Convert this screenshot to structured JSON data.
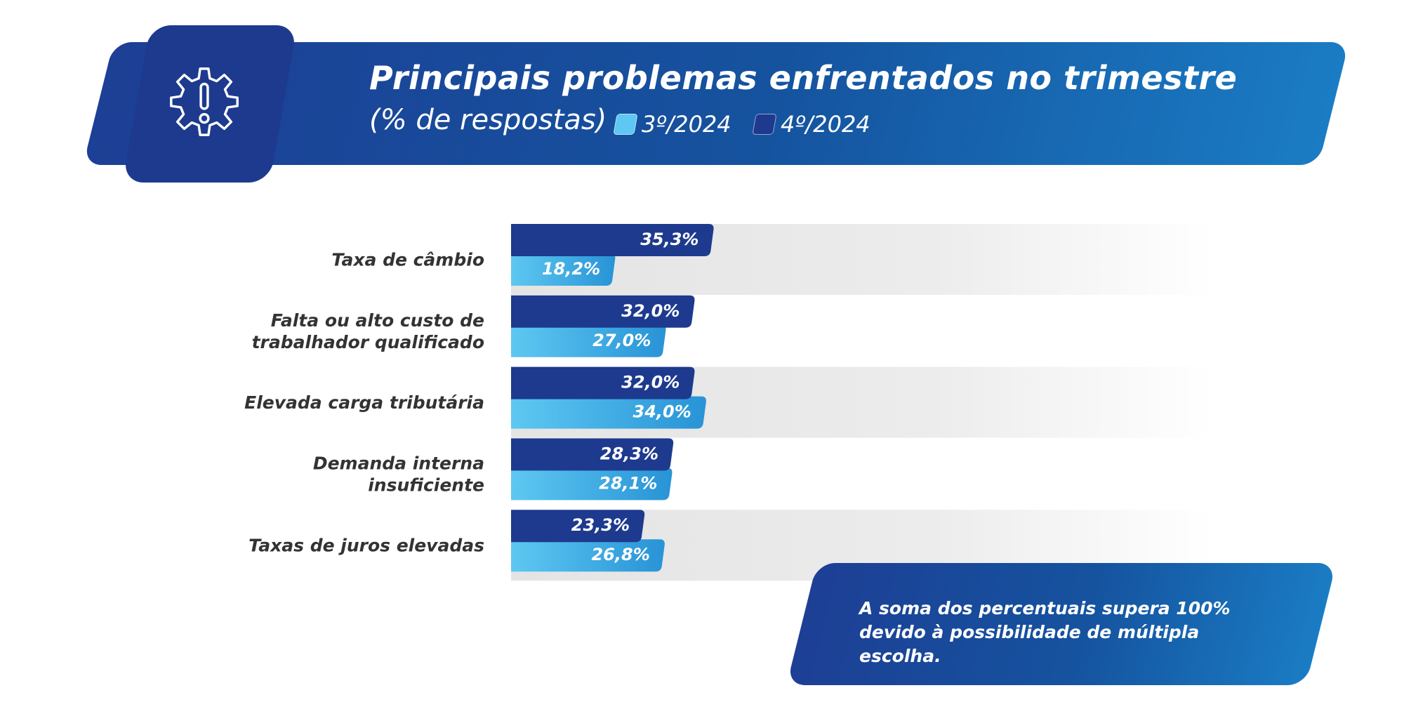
{
  "header": {
    "title": "Principais problemas enfrentados no trimestre",
    "subtitle": "(% de respostas)",
    "icon": "gear-alert-icon"
  },
  "legend": [
    {
      "label": "3º/2024",
      "color": "#5ec8f2"
    },
    {
      "label": "4º/2024",
      "color": "#1d3a8e"
    }
  ],
  "chart_data": {
    "type": "bar",
    "orientation": "horizontal",
    "title": "Principais problemas enfrentados no trimestre",
    "subtitle": "(% de respostas)",
    "categories": [
      [
        "Taxa de câmbio"
      ],
      [
        "Falta ou alto custo de",
        "trabalhador qualificado"
      ],
      [
        "Elevada carga tributária"
      ],
      [
        "Demanda interna",
        "insuficiente"
      ],
      [
        "Taxas de juros elevadas"
      ]
    ],
    "series": [
      {
        "name": "4º/2024",
        "color": "#1d3a8e",
        "values": [
          35.3,
          32.0,
          32.0,
          28.3,
          23.3
        ],
        "labels": [
          "35,3%",
          "32,0%",
          "32,0%",
          "28,3%",
          "23,3%"
        ]
      },
      {
        "name": "3º/2024",
        "color": "#5ec8f2",
        "values": [
          18.2,
          27.0,
          34.0,
          28.1,
          26.8
        ],
        "labels": [
          "18,2%",
          "27,0%",
          "34,0%",
          "28,1%",
          "26,8%"
        ]
      }
    ],
    "legend": "top",
    "grid": false
  },
  "note": {
    "line1": "A soma dos percentuais supera 100%",
    "line2": "devido à possibilidade de múltipla escolha."
  }
}
